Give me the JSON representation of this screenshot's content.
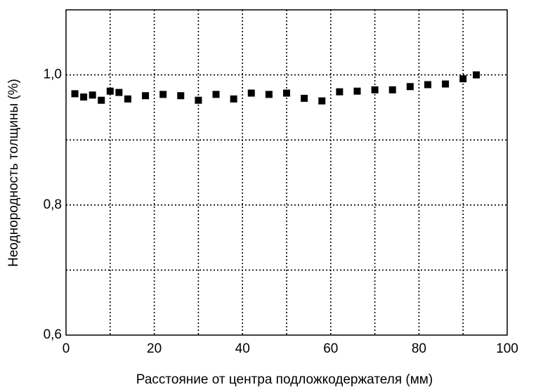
{
  "chart_data": {
    "type": "scatter",
    "x_label": "Расстояние от центра подложкодержателя (мм)",
    "y_label": "Неоднородность толщины (%)",
    "x": [
      2,
      4,
      6,
      8,
      10,
      12,
      14,
      18,
      22,
      26,
      30,
      34,
      38,
      42,
      46,
      50,
      54,
      58,
      62,
      66,
      70,
      74,
      78,
      82,
      86,
      90,
      93
    ],
    "values": [
      0.971,
      0.966,
      0.969,
      0.961,
      0.975,
      0.973,
      0.963,
      0.968,
      0.97,
      0.968,
      0.961,
      0.97,
      0.963,
      0.972,
      0.97,
      0.972,
      0.964,
      0.96,
      0.974,
      0.975,
      0.977,
      0.977,
      0.982,
      0.985,
      0.986,
      0.994,
      1.0
    ],
    "color": "#000000",
    "xlim": [
      0,
      100
    ],
    "ylim": [
      0.6,
      1.1
    ],
    "xticks": [
      0,
      20,
      40,
      60,
      80,
      100
    ],
    "yticks": [
      {
        "value": 0.6,
        "label": "0,6"
      },
      {
        "value": 0.8,
        "label": "0,8"
      },
      {
        "value": 1.0,
        "label": "1,0"
      }
    ],
    "xgrid": [
      10,
      20,
      30,
      40,
      50,
      60,
      70,
      80,
      90
    ],
    "ygrid": [
      0.7,
      0.8,
      0.9,
      1.0
    ],
    "grid": true
  }
}
